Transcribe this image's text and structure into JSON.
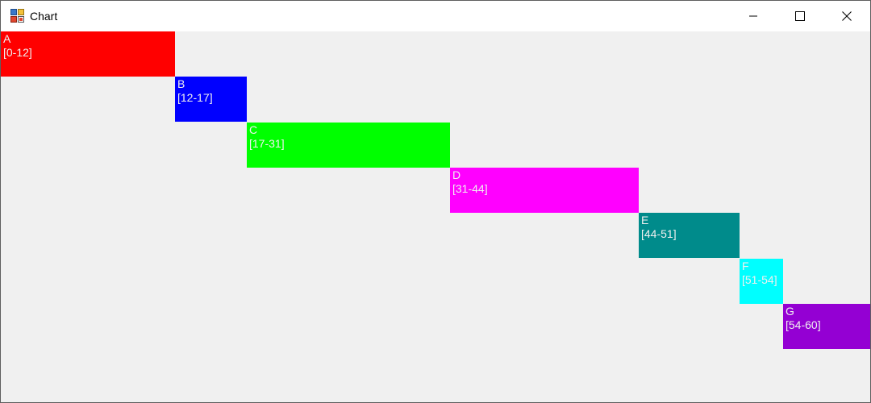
{
  "window": {
    "title": "Chart"
  },
  "chart_data": {
    "type": "bar",
    "orientation": "horizontal-timeline",
    "xlim": [
      0,
      60
    ],
    "grid": false,
    "tasks": [
      {
        "name": "A",
        "range_label": "[0-12]",
        "start": 0,
        "end": 12,
        "color": "#ff0000",
        "label_color": "#f0f0f0"
      },
      {
        "name": "B",
        "range_label": "[12-17]",
        "start": 12,
        "end": 17,
        "color": "#0000ff",
        "label_color": "#f0f0f0"
      },
      {
        "name": "C",
        "range_label": "[17-31]",
        "start": 17,
        "end": 31,
        "color": "#00ff00",
        "label_color": "#f0f0f0"
      },
      {
        "name": "D",
        "range_label": "[31-44]",
        "start": 31,
        "end": 44,
        "color": "#ff00ff",
        "label_color": "#f0f0f0"
      },
      {
        "name": "E",
        "range_label": "[44-51]",
        "start": 44,
        "end": 51,
        "color": "#008b8b",
        "label_color": "#f0f0f0"
      },
      {
        "name": "F",
        "range_label": "[51-54]",
        "start": 51,
        "end": 54,
        "color": "#00ffff",
        "label_color": "#f0f0f0"
      },
      {
        "name": "G",
        "range_label": "[54-60]",
        "start": 54,
        "end": 60,
        "color": "#9400d3",
        "label_color": "#f0f0f0"
      }
    ]
  }
}
